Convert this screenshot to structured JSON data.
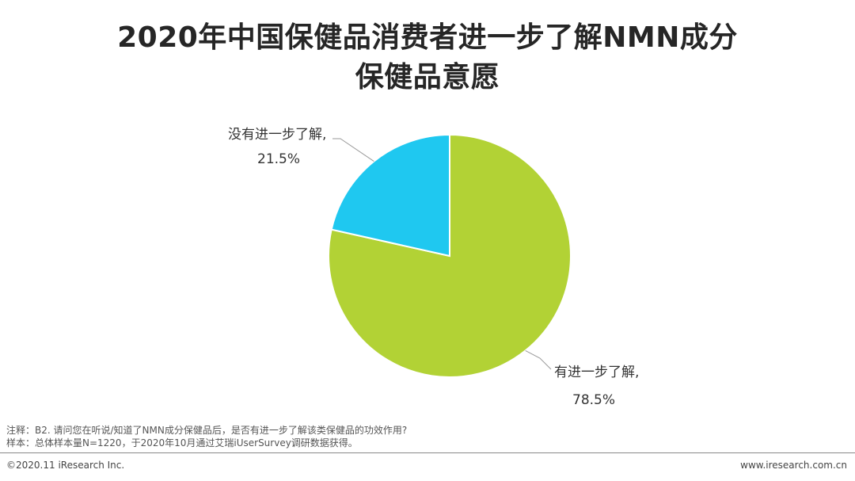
{
  "title_line1": "2020年中国保健品消费者进一步了解NMN成分",
  "title_line2": "保健品意愿",
  "chart_data": {
    "type": "pie",
    "title": "2020年中国保健品消费者进一步了解NMN成分保健品意愿",
    "slices": [
      {
        "label": "有进一步了解,",
        "value": 78.5,
        "value_label": "78.5%",
        "color": "#b2d235"
      },
      {
        "label": "没有进一步了解,",
        "value": 21.5,
        "value_label": "21.5%",
        "color": "#1fc8f0"
      }
    ]
  },
  "notes": {
    "line1": "注释：B2. 请问您在听说/知道了NMN成分保健品后，是否有进一步了解该类保健品的功效作用?",
    "line2": "样本：总体样本量N=1220，于2020年10月通过艾瑞iUserSurvey调研数据获得。"
  },
  "footer": {
    "copyright": "©2020.11 iResearch Inc.",
    "website": "www.iresearch.com.cn"
  }
}
